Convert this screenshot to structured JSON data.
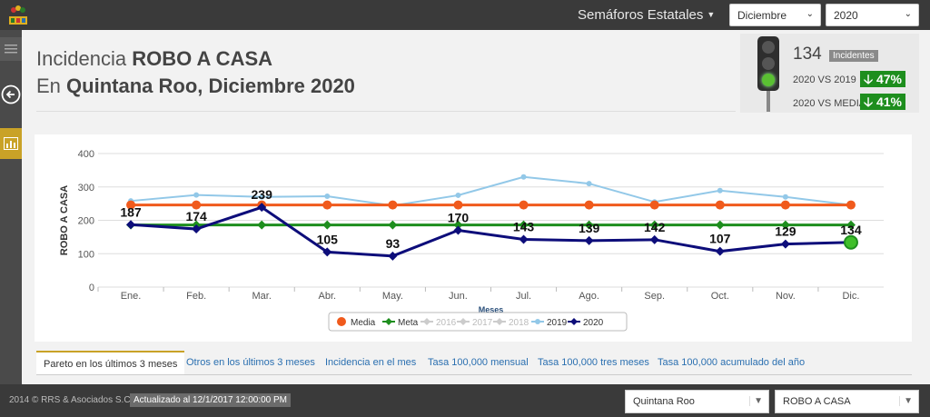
{
  "header": {
    "nav_title": "Semáforos Estatales",
    "month_select": "Diciembre",
    "year_select": "2020"
  },
  "page": {
    "title_prefix": "Incidencia",
    "title_crime": "ROBO A CASA",
    "title_line2_prefix": "En",
    "title_line2_bold": "Quintana Roo, Diciembre 2020"
  },
  "indicator": {
    "count": "134",
    "count_label": "Incidentes",
    "cmp1_label": "2020 VS 2019",
    "cmp1_value": "47%",
    "cmp2_label": "2020 VS MEDIA",
    "cmp2_value": "41%",
    "light": "green"
  },
  "chart_data": {
    "type": "line",
    "categories": [
      "Ene.",
      "Feb.",
      "Mar.",
      "Abr.",
      "May.",
      "Jun.",
      "Jul.",
      "Ago.",
      "Sep.",
      "Oct.",
      "Nov.",
      "Dic."
    ],
    "xlabel": "Meses",
    "ylabel": "ROBO A CASA",
    "ylim": [
      0,
      400
    ],
    "yticks": [
      0,
      100,
      200,
      300,
      400
    ],
    "series": [
      {
        "name": "Media",
        "color": "#f05a1c",
        "values": [
          246,
          246,
          246,
          246,
          246,
          246,
          246,
          246,
          246,
          246,
          246,
          246
        ],
        "marker": "circle"
      },
      {
        "name": "Meta",
        "color": "#1e8e1e",
        "values": [
          186,
          186,
          186,
          186,
          186,
          186,
          186,
          186,
          186,
          186,
          186,
          186
        ],
        "marker": "diamond"
      },
      {
        "name": "2019",
        "color": "#92c8e8",
        "values": [
          258,
          276,
          270,
          272,
          244,
          275,
          330,
          310,
          255,
          289,
          270,
          246
        ],
        "marker": "circle"
      },
      {
        "name": "2020",
        "color": "#0d0d7a",
        "values": [
          187,
          174,
          239,
          105,
          93,
          170,
          143,
          139,
          142,
          107,
          129,
          134
        ],
        "marker": "diamond",
        "labels": true
      }
    ],
    "legend": [
      "Media",
      "Meta",
      "2016",
      "2017",
      "2018",
      "2019",
      "2020"
    ],
    "legend_disabled": [
      "2016",
      "2017",
      "2018"
    ],
    "legend_position": "bottom-center"
  },
  "tabs": [
    "Pareto en los últimos 3 meses",
    "Otros en los últimos 3 meses",
    "Incidencia en el mes",
    "Tasa 100,000 mensual",
    "Tasa 100,000 tres meses",
    "Tasa 100,000 acumulado del año"
  ],
  "footer": {
    "copyright": "2014 © RRS & Asociados S.C.",
    "updated": "Actualizado al 12/1/2017 12:00:00 PM",
    "state_select": "Quintana Roo",
    "crime_select": "ROBO A CASA"
  }
}
